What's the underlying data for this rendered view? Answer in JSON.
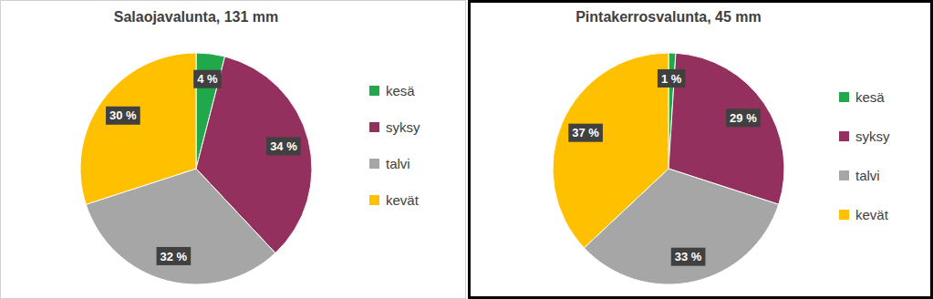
{
  "chart_data": [
    {
      "type": "pie",
      "title": "Salaojavalunta, 131 mm",
      "categories": [
        "kesä",
        "syksy",
        "talvi",
        "kevät"
      ],
      "values": [
        4,
        34,
        32,
        30
      ],
      "value_labels": [
        "4 %",
        "34 %",
        "32 %",
        "30 %"
      ],
      "colors": [
        "#21a84a",
        "#93305e",
        "#a6a6a6",
        "#ffc000"
      ],
      "data_labels": true,
      "legend": "right"
    },
    {
      "type": "pie",
      "title": "Pintakerrosvalunta, 45 mm",
      "categories": [
        "kesä",
        "syksy",
        "talvi",
        "kevät"
      ],
      "values": [
        1,
        29,
        33,
        37
      ],
      "value_labels": [
        "1 %",
        "29 %",
        "33 %",
        "37 %"
      ],
      "colors": [
        "#21a84a",
        "#93305e",
        "#a6a6a6",
        "#ffc000"
      ],
      "data_labels": true,
      "legend": "right"
    }
  ]
}
